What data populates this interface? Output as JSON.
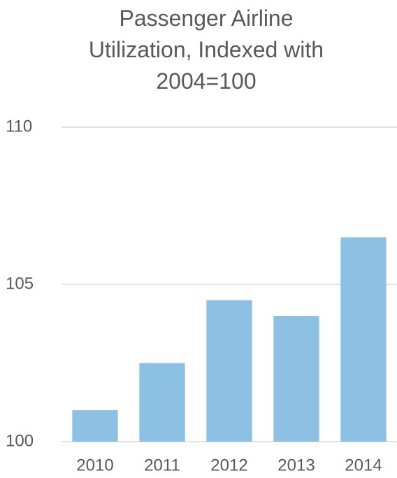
{
  "chart_data": {
    "type": "bar",
    "title": "Passenger Airline\nUtilization, Indexed with\n2004=100",
    "categories": [
      "2010",
      "2011",
      "2012",
      "2013",
      "2014"
    ],
    "values": [
      101,
      102.5,
      104.5,
      104,
      106.5
    ],
    "color": "#8cc1e4",
    "ylim": [
      100,
      110
    ],
    "yticks": [
      100,
      105,
      110
    ],
    "grid": true
  }
}
